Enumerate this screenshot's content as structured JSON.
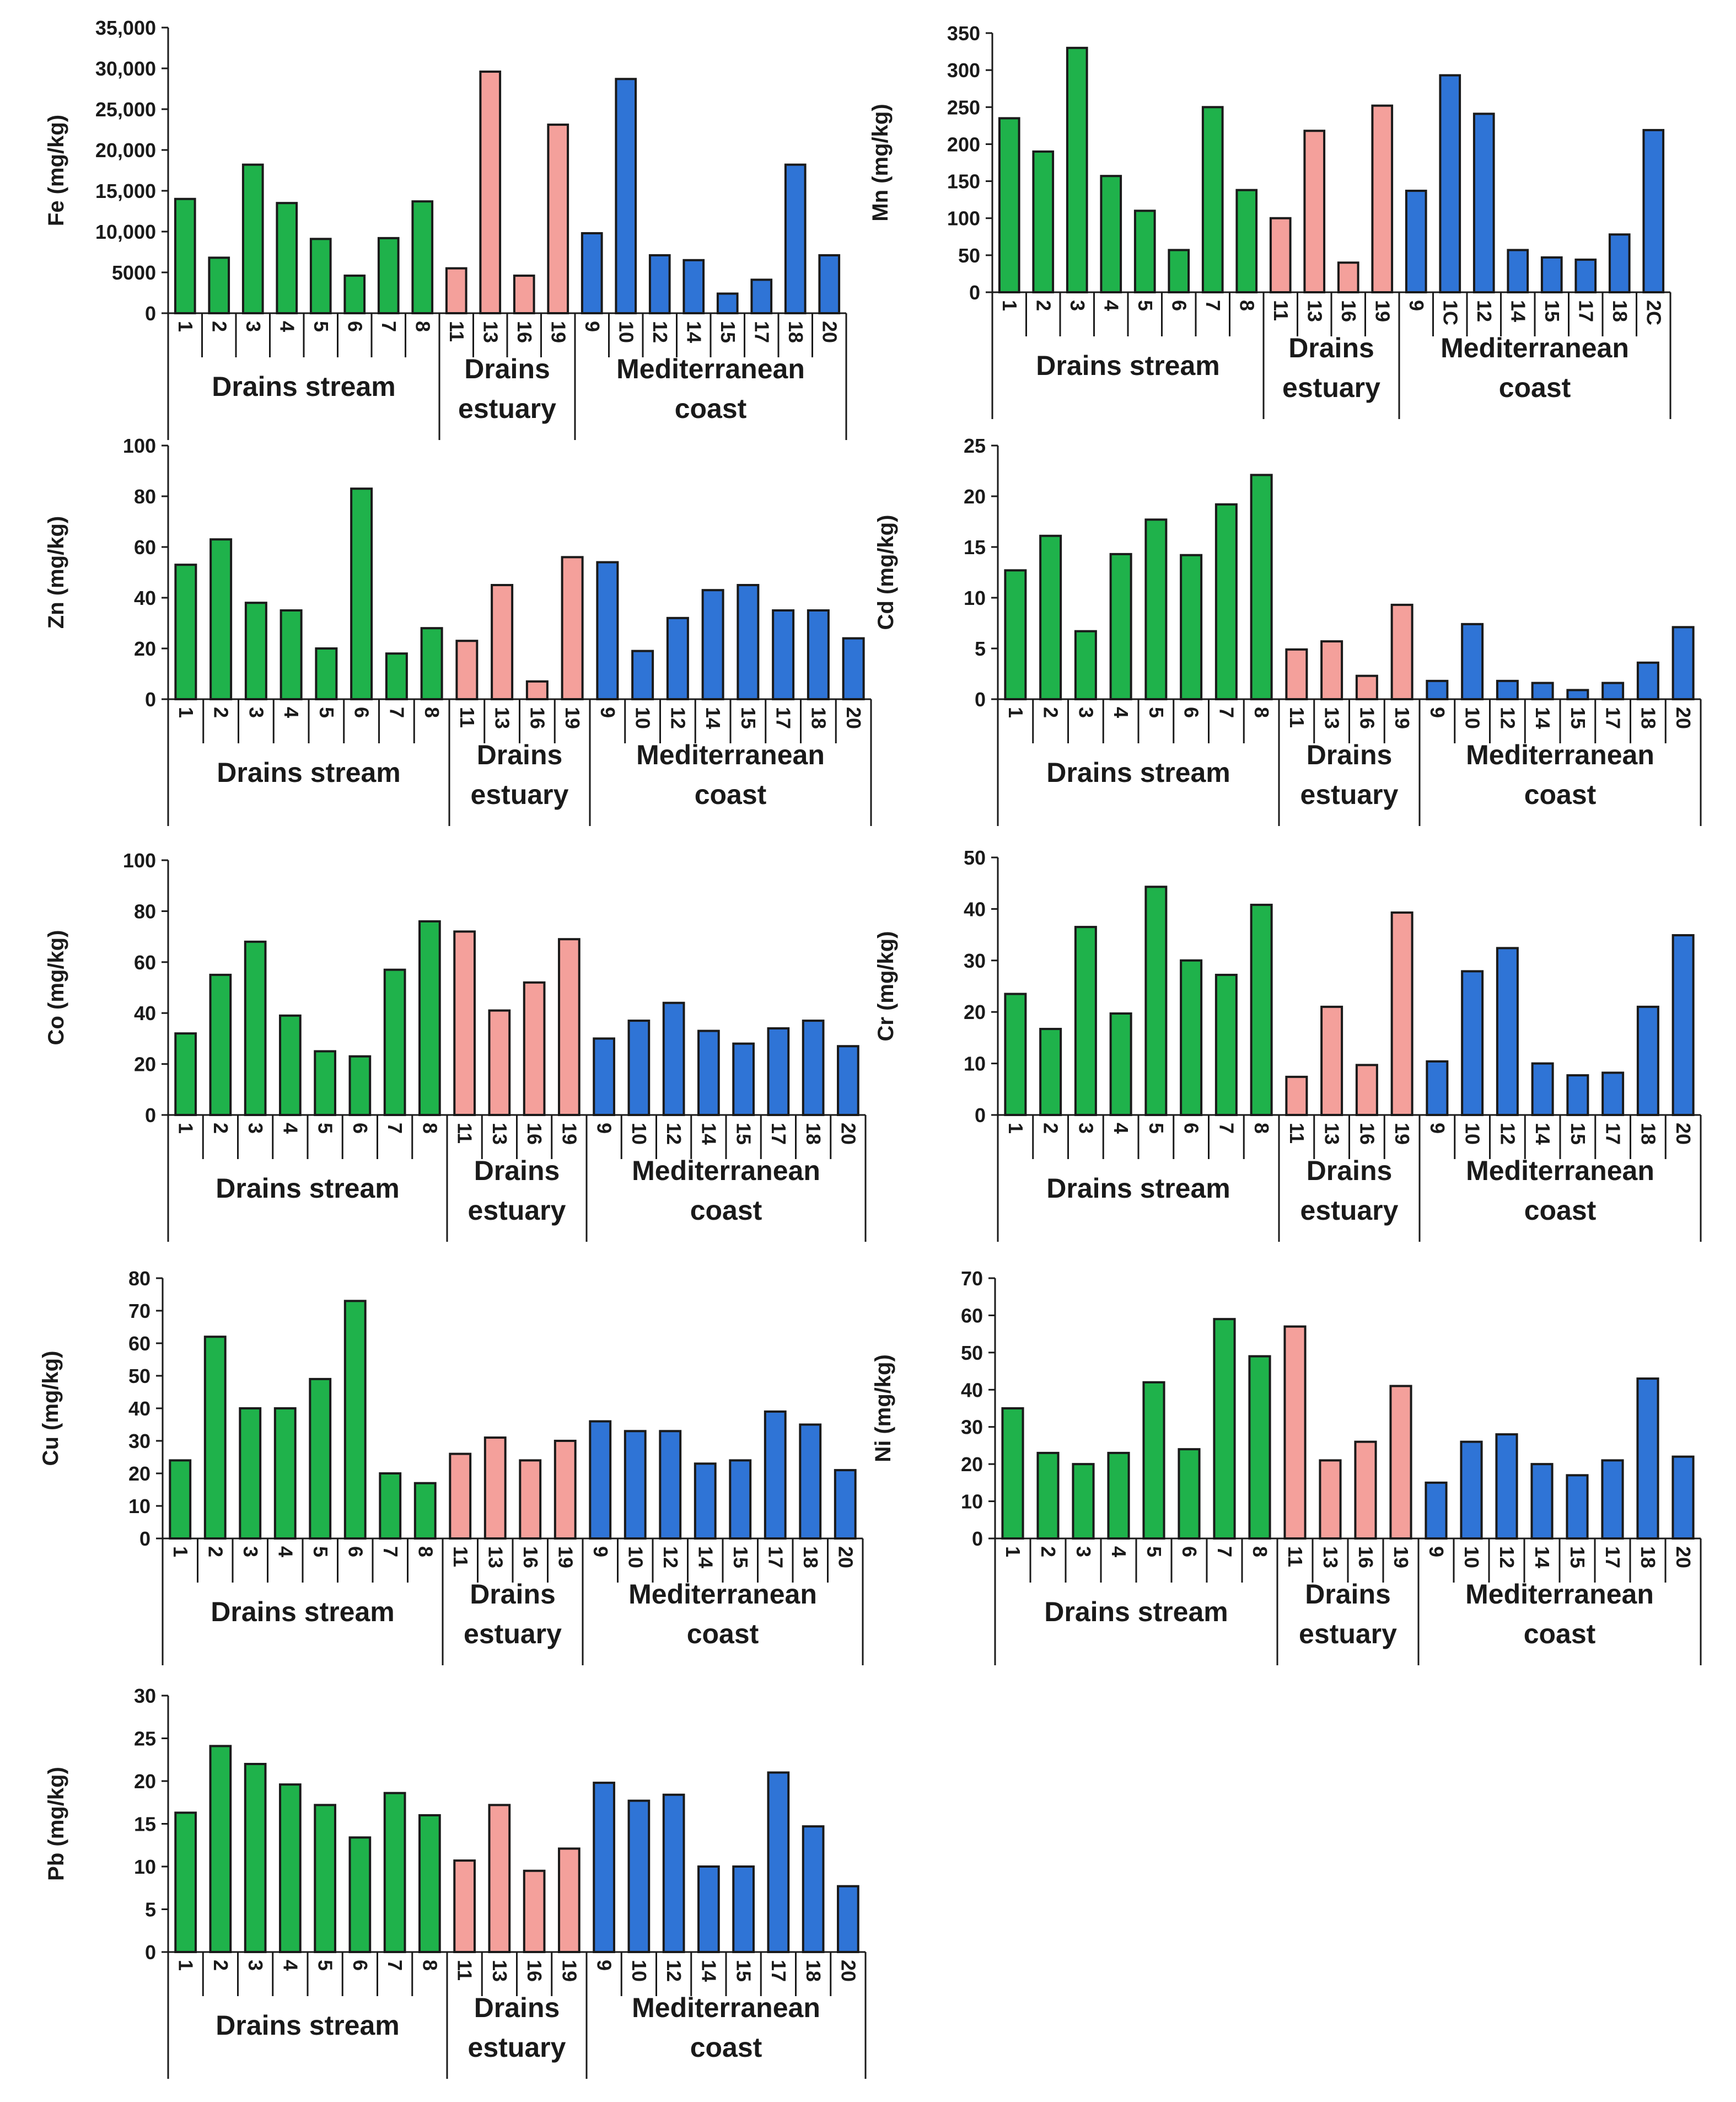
{
  "groups": [
    {
      "name": "Drains stream",
      "lines": [
        "Drains stream"
      ],
      "color": "#1fb24b"
    },
    {
      "name": "Drains estuary",
      "lines": [
        "Drains",
        "estuary"
      ],
      "color": "#f4a09b"
    },
    {
      "name": "Mediterranean coast",
      "lines": [
        "Mediterranean",
        "coast"
      ],
      "color": "#2f74d6"
    }
  ],
  "chart_data": [
    {
      "type": "bar",
      "title": "Fe",
      "ylabel": "Fe (mg/kg)",
      "ylim": [
        0,
        35000
      ],
      "yticks": [
        "0",
        "5000",
        "10,000",
        "15,000",
        "20,000",
        "25,000",
        "30,000",
        "35,000"
      ],
      "categories": [
        "1",
        "2",
        "3",
        "4",
        "5",
        "6",
        "7",
        "8",
        "11",
        "13",
        "16",
        "19",
        "9",
        "10",
        "12",
        "14",
        "15",
        "17",
        "18",
        "20"
      ],
      "groups": [
        "Drains stream",
        "Drains stream",
        "Drains stream",
        "Drains stream",
        "Drains stream",
        "Drains stream",
        "Drains stream",
        "Drains stream",
        "Drains estuary",
        "Drains estuary",
        "Drains estuary",
        "Drains estuary",
        "Mediterranean coast",
        "Mediterranean coast",
        "Mediterranean coast",
        "Mediterranean coast",
        "Mediterranean coast",
        "Mediterranean coast",
        "Mediterranean coast",
        "Mediterranean coast"
      ],
      "values": [
        14000,
        6800,
        18200,
        13500,
        9100,
        4600,
        9200,
        13700,
        5500,
        29600,
        4600,
        23100,
        9800,
        28700,
        7100,
        6500,
        2400,
        4100,
        18200,
        7100
      ]
    },
    {
      "type": "bar",
      "title": "Mn",
      "ylabel": "Mn (mg/kg)",
      "ylim": [
        0,
        350
      ],
      "yticks": [
        "0",
        "50",
        "100",
        "150",
        "200",
        "250",
        "300",
        "350"
      ],
      "categories": [
        "1",
        "2",
        "3",
        "4",
        "5",
        "6",
        "7",
        "8",
        "11",
        "13",
        "16",
        "19",
        "9",
        "1C",
        "12",
        "14",
        "15",
        "17",
        "18",
        "2C"
      ],
      "groups": [
        "Drains stream",
        "Drains stream",
        "Drains stream",
        "Drains stream",
        "Drains stream",
        "Drains stream",
        "Drains stream",
        "Drains stream",
        "Drains estuary",
        "Drains estuary",
        "Drains estuary",
        "Drains estuary",
        "Mediterranean coast",
        "Mediterranean coast",
        "Mediterranean coast",
        "Mediterranean coast",
        "Mediterranean coast",
        "Mediterranean coast",
        "Mediterranean coast",
        "Mediterranean coast"
      ],
      "values": [
        235,
        190,
        330,
        157,
        110,
        57,
        250,
        138,
        100,
        218,
        40,
        252,
        137,
        293,
        241,
        57,
        47,
        44,
        78,
        219
      ]
    },
    {
      "type": "bar",
      "title": "Zn",
      "ylabel": "Zn (mg/kg)",
      "ylim": [
        0,
        100
      ],
      "yticks": [
        "0",
        "20",
        "40",
        "60",
        "80",
        "100"
      ],
      "categories": [
        "1",
        "2",
        "3",
        "4",
        "5",
        "6",
        "7",
        "8",
        "11",
        "13",
        "16",
        "19",
        "9",
        "10",
        "12",
        "14",
        "15",
        "17",
        "18",
        "20"
      ],
      "groups": [
        "Drains stream",
        "Drains stream",
        "Drains stream",
        "Drains stream",
        "Drains stream",
        "Drains stream",
        "Drains stream",
        "Drains stream",
        "Drains estuary",
        "Drains estuary",
        "Drains estuary",
        "Drains estuary",
        "Mediterranean coast",
        "Mediterranean coast",
        "Mediterranean coast",
        "Mediterranean coast",
        "Mediterranean coast",
        "Mediterranean coast",
        "Mediterranean coast",
        "Mediterranean coast"
      ],
      "values": [
        53,
        63,
        38,
        35,
        20,
        83,
        18,
        28,
        23,
        45,
        7,
        56,
        54,
        19,
        32,
        43,
        45,
        35,
        35,
        24
      ]
    },
    {
      "type": "bar",
      "title": "Cd",
      "ylabel": "Cd (mg/kg)",
      "ylim": [
        0,
        25
      ],
      "yticks": [
        "0",
        "5",
        "10",
        "15",
        "20",
        "25"
      ],
      "categories": [
        "1",
        "2",
        "3",
        "4",
        "5",
        "6",
        "7",
        "8",
        "11",
        "13",
        "16",
        "19",
        "9",
        "10",
        "12",
        "14",
        "15",
        "17",
        "18",
        "20"
      ],
      "groups": [
        "Drains stream",
        "Drains stream",
        "Drains stream",
        "Drains stream",
        "Drains stream",
        "Drains stream",
        "Drains stream",
        "Drains stream",
        "Drains estuary",
        "Drains estuary",
        "Drains estuary",
        "Drains estuary",
        "Mediterranean coast",
        "Mediterranean coast",
        "Mediterranean coast",
        "Mediterranean coast",
        "Mediterranean coast",
        "Mediterranean coast",
        "Mediterranean coast",
        "Mediterranean coast"
      ],
      "values": [
        12.7,
        16.1,
        6.7,
        14.3,
        17.7,
        14.2,
        19.2,
        22.1,
        4.9,
        5.7,
        2.3,
        9.3,
        1.8,
        7.4,
        1.8,
        1.6,
        0.9,
        1.6,
        3.6,
        7.1
      ]
    },
    {
      "type": "bar",
      "title": "Co",
      "ylabel": "Co (mg/kg)",
      "ylim": [
        0,
        100
      ],
      "yticks": [
        "0",
        "20",
        "40",
        "60",
        "80",
        "100"
      ],
      "categories": [
        "1",
        "2",
        "3",
        "4",
        "5",
        "6",
        "7",
        "8",
        "11",
        "13",
        "16",
        "19",
        "9",
        "10",
        "12",
        "14",
        "15",
        "17",
        "18",
        "20"
      ],
      "groups": [
        "Drains stream",
        "Drains stream",
        "Drains stream",
        "Drains stream",
        "Drains stream",
        "Drains stream",
        "Drains stream",
        "Drains stream",
        "Drains estuary",
        "Drains estuary",
        "Drains estuary",
        "Drains estuary",
        "Mediterranean coast",
        "Mediterranean coast",
        "Mediterranean coast",
        "Mediterranean coast",
        "Mediterranean coast",
        "Mediterranean coast",
        "Mediterranean coast",
        "Mediterranean coast"
      ],
      "values": [
        32,
        55,
        68,
        39,
        25,
        23,
        57,
        76,
        72,
        41,
        52,
        69,
        30,
        37,
        44,
        33,
        28,
        34,
        37,
        27
      ]
    },
    {
      "type": "bar",
      "title": "Cr",
      "ylabel": "Cr (mg/kg)",
      "ylim": [
        0,
        50
      ],
      "yticks": [
        "0",
        "10",
        "20",
        "30",
        "40",
        "50"
      ],
      "categories": [
        "1",
        "2",
        "3",
        "4",
        "5",
        "6",
        "7",
        "8",
        "11",
        "13",
        "16",
        "19",
        "9",
        "10",
        "12",
        "14",
        "15",
        "17",
        "18",
        "20"
      ],
      "groups": [
        "Drains stream",
        "Drains stream",
        "Drains stream",
        "Drains stream",
        "Drains stream",
        "Drains stream",
        "Drains stream",
        "Drains stream",
        "Drains estuary",
        "Drains estuary",
        "Drains estuary",
        "Drains estuary",
        "Mediterranean coast",
        "Mediterranean coast",
        "Mediterranean coast",
        "Mediterranean coast",
        "Mediterranean coast",
        "Mediterranean coast",
        "Mediterranean coast",
        "Mediterranean coast"
      ],
      "values": [
        23.5,
        16.7,
        36.5,
        19.7,
        44.3,
        30.0,
        27.2,
        40.8,
        7.4,
        21.0,
        9.7,
        39.3,
        10.4,
        27.9,
        32.4,
        10.0,
        7.7,
        8.2,
        21.0,
        34.9
      ]
    },
    {
      "type": "bar",
      "title": "Cu",
      "ylabel": "Cu (mg/kg)",
      "ylim": [
        0,
        80
      ],
      "yticks": [
        "0",
        "10",
        "20",
        "30",
        "40",
        "50",
        "60",
        "70",
        "80"
      ],
      "categories": [
        "1",
        "2",
        "3",
        "4",
        "5",
        "6",
        "7",
        "8",
        "11",
        "13",
        "16",
        "19",
        "9",
        "10",
        "12",
        "14",
        "15",
        "17",
        "18",
        "20"
      ],
      "groups": [
        "Drains stream",
        "Drains stream",
        "Drains stream",
        "Drains stream",
        "Drains stream",
        "Drains stream",
        "Drains stream",
        "Drains stream",
        "Drains estuary",
        "Drains estuary",
        "Drains estuary",
        "Drains estuary",
        "Mediterranean coast",
        "Mediterranean coast",
        "Mediterranean coast",
        "Mediterranean coast",
        "Mediterranean coast",
        "Mediterranean coast",
        "Mediterranean coast",
        "Mediterranean coast"
      ],
      "values": [
        24,
        62,
        40,
        40,
        49,
        73,
        20,
        17,
        26,
        31,
        24,
        30,
        36,
        33,
        33,
        23,
        24,
        39,
        35,
        21
      ]
    },
    {
      "type": "bar",
      "title": "Ni",
      "ylabel": "Ni (mg/kg)",
      "ylim": [
        0,
        70
      ],
      "yticks": [
        "0",
        "10",
        "20",
        "30",
        "40",
        "50",
        "60",
        "70"
      ],
      "categories": [
        "1",
        "2",
        "3",
        "4",
        "5",
        "6",
        "7",
        "8",
        "11",
        "13",
        "16",
        "19",
        "9",
        "10",
        "12",
        "14",
        "15",
        "17",
        "18",
        "20"
      ],
      "groups": [
        "Drains stream",
        "Drains stream",
        "Drains stream",
        "Drains stream",
        "Drains stream",
        "Drains stream",
        "Drains stream",
        "Drains stream",
        "Drains estuary",
        "Drains estuary",
        "Drains estuary",
        "Drains estuary",
        "Mediterranean coast",
        "Mediterranean coast",
        "Mediterranean coast",
        "Mediterranean coast",
        "Mediterranean coast",
        "Mediterranean coast",
        "Mediterranean coast",
        "Mediterranean coast"
      ],
      "values": [
        35,
        23,
        20,
        23,
        42,
        24,
        59,
        49,
        57,
        21,
        26,
        41,
        15,
        26,
        28,
        20,
        17,
        21,
        43,
        22
      ]
    },
    {
      "type": "bar",
      "title": "Pb",
      "ylabel": "Pb (mg/kg)",
      "ylim": [
        0,
        30
      ],
      "yticks": [
        "0",
        "5",
        "10",
        "15",
        "20",
        "25",
        "30"
      ],
      "categories": [
        "1",
        "2",
        "3",
        "4",
        "5",
        "6",
        "7",
        "8",
        "11",
        "13",
        "16",
        "19",
        "9",
        "10",
        "12",
        "14",
        "15",
        "17",
        "18",
        "20"
      ],
      "groups": [
        "Drains stream",
        "Drains stream",
        "Drains stream",
        "Drains stream",
        "Drains stream",
        "Drains stream",
        "Drains stream",
        "Drains stream",
        "Drains estuary",
        "Drains estuary",
        "Drains estuary",
        "Drains estuary",
        "Mediterranean coast",
        "Mediterranean coast",
        "Mediterranean coast",
        "Mediterranean coast",
        "Mediterranean coast",
        "Mediterranean coast",
        "Mediterranean coast",
        "Mediterranean coast"
      ],
      "values": [
        16.3,
        24.1,
        22.0,
        19.6,
        17.2,
        13.4,
        18.6,
        16.0,
        10.7,
        17.2,
        9.5,
        12.1,
        19.8,
        17.7,
        18.4,
        10.0,
        10.0,
        21.0,
        14.7,
        7.7
      ]
    }
  ]
}
